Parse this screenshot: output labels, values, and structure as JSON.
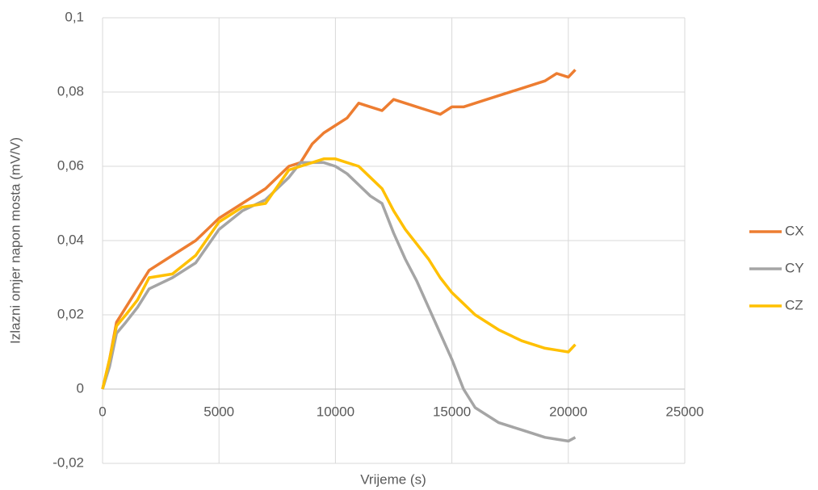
{
  "chart_data": {
    "type": "line",
    "x_label": "Vrijeme (s)",
    "y_label": "Izlazni omjer napon mosta (mV/V)",
    "x": [
      0,
      300,
      600,
      1000,
      1500,
      2000,
      3000,
      4000,
      5000,
      6000,
      7000,
      8000,
      8500,
      9000,
      9500,
      10000,
      10500,
      11000,
      11500,
      12000,
      12500,
      13000,
      13500,
      14000,
      14500,
      15000,
      15500,
      16000,
      17000,
      18000,
      19000,
      19500,
      20000,
      20300
    ],
    "series": [
      {
        "name": "CX",
        "color": "#ed7d31",
        "values": [
          0,
          0.008,
          0.018,
          0.022,
          0.027,
          0.032,
          0.036,
          0.04,
          0.046,
          0.05,
          0.054,
          0.06,
          0.061,
          0.066,
          0.069,
          0.071,
          0.073,
          0.077,
          0.076,
          0.075,
          0.078,
          0.077,
          0.076,
          0.075,
          0.074,
          0.076,
          0.076,
          0.077,
          0.079,
          0.081,
          0.083,
          0.085,
          0.084,
          0.086
        ]
      },
      {
        "name": "CY",
        "color": "#a5a5a5",
        "values": [
          0,
          0.006,
          0.015,
          0.018,
          0.022,
          0.027,
          0.03,
          0.034,
          0.043,
          0.048,
          0.051,
          0.057,
          0.061,
          0.061,
          0.061,
          0.06,
          0.058,
          0.055,
          0.052,
          0.05,
          0.042,
          0.035,
          0.029,
          0.022,
          0.015,
          0.008,
          0.0,
          -0.005,
          -0.009,
          -0.011,
          -0.013,
          -0.0135,
          -0.014,
          -0.013
        ]
      },
      {
        "name": "CZ",
        "color": "#ffc000",
        "values": [
          0,
          0.008,
          0.017,
          0.02,
          0.024,
          0.03,
          0.031,
          0.036,
          0.045,
          0.049,
          0.05,
          0.059,
          0.06,
          0.061,
          0.062,
          0.062,
          0.061,
          0.06,
          0.057,
          0.054,
          0.048,
          0.043,
          0.039,
          0.035,
          0.03,
          0.026,
          0.023,
          0.02,
          0.016,
          0.013,
          0.011,
          0.0105,
          0.01,
          0.012
        ]
      }
    ],
    "xlim": [
      0,
      25000
    ],
    "xticks": [
      0,
      5000,
      10000,
      15000,
      20000,
      25000
    ],
    "ylim": [
      -0.02,
      0.1
    ],
    "yticks": [
      {
        "value": -0.02,
        "label": "-0,02"
      },
      {
        "value": 0,
        "label": "0"
      },
      {
        "value": 0.02,
        "label": "0,02"
      },
      {
        "value": 0.04,
        "label": "0,04"
      },
      {
        "value": 0.06,
        "label": "0,06"
      },
      {
        "value": 0.08,
        "label": "0,08"
      },
      {
        "value": 0.1,
        "label": "0,1"
      }
    ],
    "grid": true,
    "legend": "right"
  }
}
